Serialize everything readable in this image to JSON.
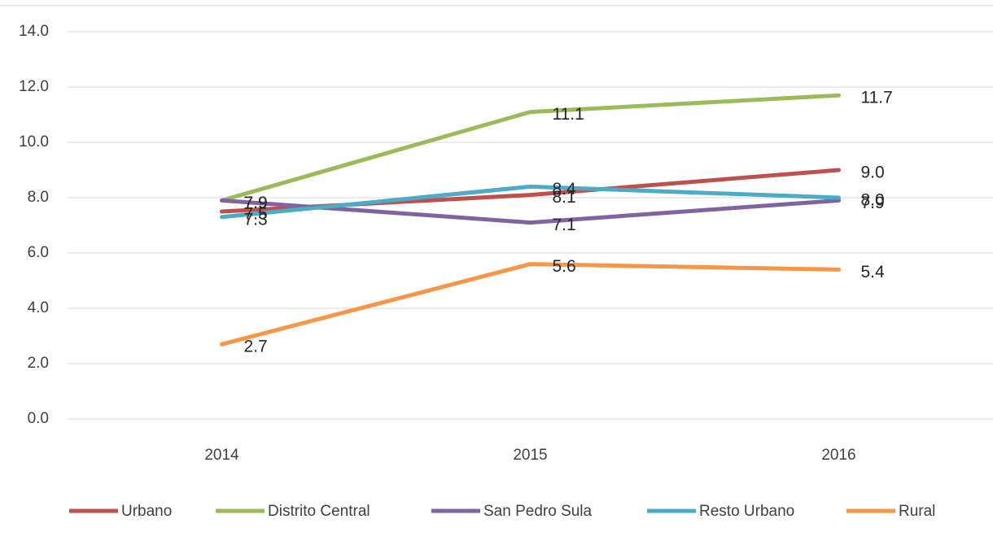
{
  "chart_data": {
    "type": "line",
    "categories": [
      "2014",
      "2015",
      "2016"
    ],
    "series": [
      {
        "name": "Urbano",
        "color": "#c0504d",
        "values": [
          7.5,
          8.1,
          9.0
        ],
        "value_labels": [
          "7.5",
          "8.1",
          "9.0"
        ]
      },
      {
        "name": "Distrito Central",
        "color": "#9bbb59",
        "values": [
          7.9,
          11.1,
          11.7
        ],
        "value_labels": [
          "7.9",
          "11.1",
          "11.7"
        ]
      },
      {
        "name": "San Pedro Sula",
        "color": "#8064a2",
        "values": [
          7.9,
          7.1,
          7.9
        ],
        "value_labels": [
          "7.9",
          "7.1",
          "7.9"
        ]
      },
      {
        "name": "Resto Urbano",
        "color": "#4bacc6",
        "values": [
          7.3,
          8.4,
          8.0
        ],
        "value_labels": [
          "7.3",
          "8.4",
          "8.0"
        ]
      },
      {
        "name": "Rural",
        "color": "#f79646",
        "values": [
          2.7,
          5.6,
          5.4
        ],
        "value_labels": [
          "2.7",
          "5.6",
          "5.4"
        ]
      }
    ],
    "ylim": [
      0,
      14
    ],
    "yticks": [
      {
        "value": 0,
        "label": "0.0"
      },
      {
        "value": 2,
        "label": "2.0"
      },
      {
        "value": 4,
        "label": "4.0"
      },
      {
        "value": 6,
        "label": "6.0"
      },
      {
        "value": 8,
        "label": "8.0"
      },
      {
        "value": 10,
        "label": "10.0"
      },
      {
        "value": 12,
        "label": "12.0"
      },
      {
        "value": 14,
        "label": "14.0"
      }
    ],
    "grid": true,
    "legend": "bottom"
  }
}
